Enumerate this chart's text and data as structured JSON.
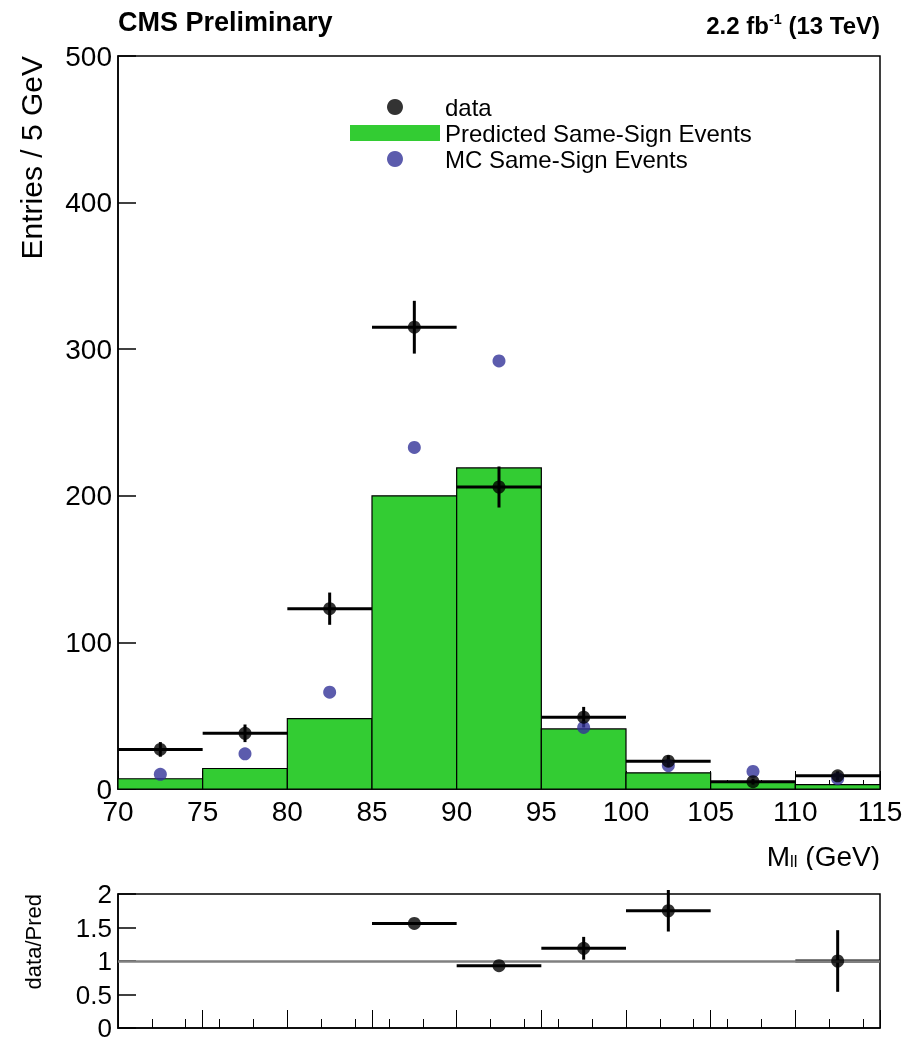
{
  "chart_data": [
    {
      "type": "histogram",
      "title": "CMS Preliminary",
      "subtitle": "2.2 fb$^{-1}$ (13 TeV)",
      "xlabel": "M$_{ll}$ (GeV)",
      "ylabel": "Entries / 5 GeV",
      "xlim": [
        70,
        115
      ],
      "xticks": [
        70,
        75,
        80,
        85,
        90,
        95,
        100,
        105,
        110,
        115
      ],
      "ylim": [
        0,
        500
      ],
      "yticks": [
        0,
        100,
        200,
        300,
        400,
        500
      ],
      "grid": false,
      "legend": "top",
      "series": [
        {
          "type": "scatter",
          "name": "data",
          "color": "#000000",
          "marker": "circle",
          "x": [
            72.5,
            77.5,
            82.5,
            87.5,
            92.5,
            97.5,
            102.5,
            107.5,
            112.5
          ],
          "values": [
            27,
            38,
            123,
            315,
            206,
            49,
            19,
            5,
            9
          ],
          "errors": [
            5,
            6,
            11,
            18,
            14,
            7,
            4,
            2,
            3
          ],
          "xerrors": [
            2.5,
            2.5,
            2.5,
            2.5,
            2.5,
            2.5,
            2.5,
            2.5,
            2.5
          ]
        },
        {
          "name": "Predicted Same-Sign Events",
          "color": "#33cc33",
          "bins": [
            70,
            75,
            80,
            85,
            90,
            95,
            100,
            105,
            110,
            115
          ],
          "values": [
            7,
            14,
            48,
            200,
            219,
            41,
            11,
            5,
            3
          ]
        },
        {
          "type": "scatter",
          "name": "MC Same-Sign Events",
          "color": "#333399",
          "marker": "circle",
          "x": [
            72.5,
            77.5,
            82.5,
            87.5,
            92.5,
            97.5,
            102.5,
            107.5,
            112.5
          ],
          "values": [
            10,
            24,
            66,
            233,
            292,
            42,
            16,
            12,
            7
          ]
        }
      ]
    },
    {
      "type": "scatter",
      "ylabel": "data/Pred",
      "xlim": [
        70,
        115
      ],
      "xticks": [
        70,
        75,
        80,
        85,
        90,
        95,
        100,
        105,
        110,
        115
      ],
      "ylim": [
        0,
        2
      ],
      "yticks": [
        0,
        0.5,
        1,
        1.5,
        2
      ],
      "tick_labels": "y",
      "grid": false,
      "legend": false,
      "ref_lines": [
        {
          "axis": "y",
          "value": 1,
          "color": "#808080"
        }
      ],
      "series": [
        {
          "color": "#000000",
          "marker": "circle",
          "x": [
            87.5,
            92.5,
            97.5,
            102.5,
            112.5
          ],
          "values": [
            1.56,
            0.93,
            1.19,
            1.75,
            1.0
          ],
          "errors": [
            null,
            null,
            0.17,
            0.31,
            0.46
          ],
          "xerrors": [
            2.5,
            2.5,
            2.5,
            2.5,
            2.5
          ]
        }
      ]
    }
  ]
}
